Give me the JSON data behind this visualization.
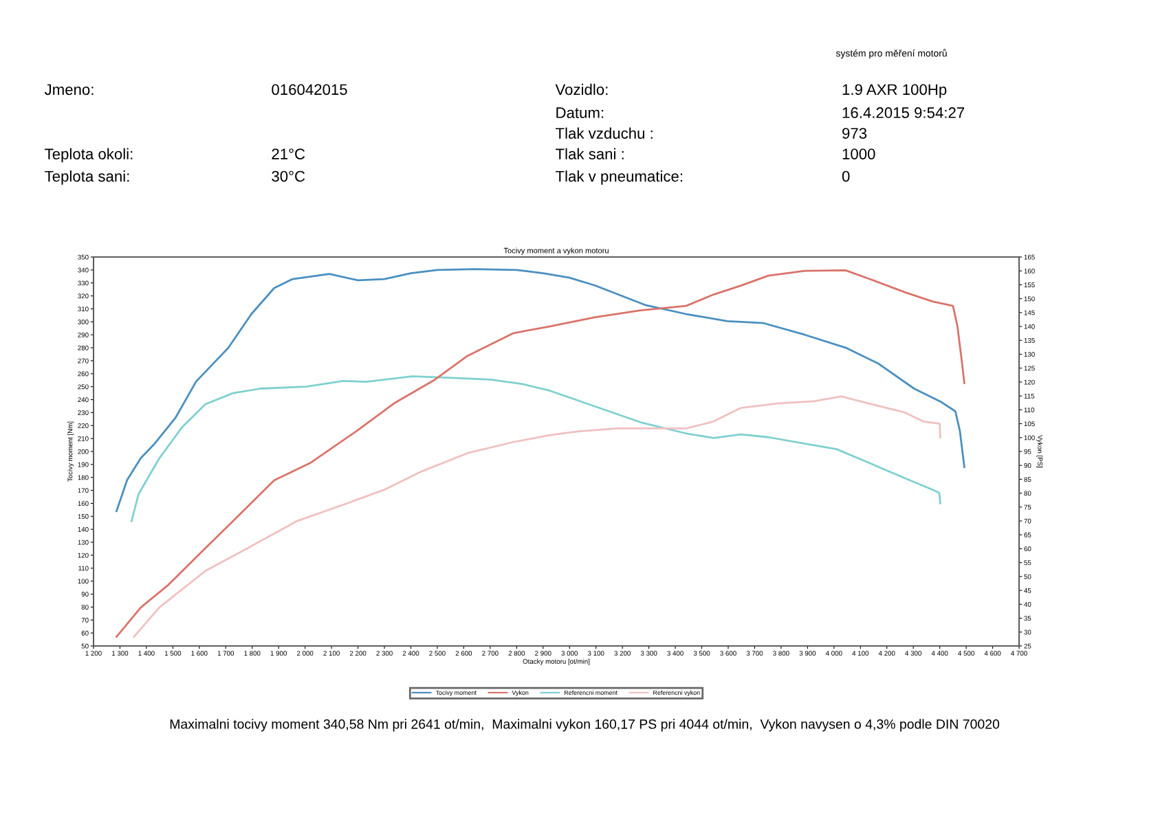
{
  "chart_data": {
    "type": "line",
    "title": "Tocivy moment a vykon motoru",
    "xlabel": "Otacky motoru [ot/min]",
    "ylabel": "Tocivy moment [Nm]",
    "y2label": "Vykon [PS]",
    "annotations": [
      "systém pro měření motorů",
      "Jmeno:",
      "016042015",
      "Teplota okoli:",
      "21°C",
      "Teplota sani:",
      "30°C",
      "Vozidlo:",
      "1.9 AXR 100Hp",
      "Datum:",
      "16.4.2015 9:54:27",
      "Tlak vzduchu :",
      "973",
      "Tlak sani :",
      "1000",
      "Tlak v pneumatice:",
      "0",
      "Maximalni tocivy moment 340,58 Nm pri 2641 ot/min,  Maximalni vykon 160,17 PS pri 4044 ot/min,  Vykon navysen o 4,3% podle DIN 70020"
    ],
    "series": [
      {
        "name": "Tocivy moment",
        "color": "#4a8fc0",
        "x": [
          1287,
          1327,
          1379,
          1431,
          1510,
          1588,
          1710,
          1797,
          1883,
          1953,
          2092,
          2200,
          2300,
          2400,
          2500,
          2641,
          2800,
          2900,
          3000,
          3097,
          3286,
          3441,
          3597,
          3734,
          3890,
          4045,
          4166,
          4303,
          4407,
          4459,
          4476,
          4493
        ],
        "values": [
          154,
          178,
          195,
          206,
          226,
          254,
          280,
          306,
          326,
          333,
          337,
          332,
          333,
          337.5,
          340,
          340.6,
          340,
          337.5,
          334,
          328,
          313,
          306,
          300.5,
          299,
          290,
          280,
          268,
          248.5,
          238,
          231,
          216,
          188
        ]
      },
      {
        "name": "Vykon",
        "color": "#d9736a",
        "axis": "y2",
        "x": [
          1287,
          1379,
          1483,
          1605,
          1744,
          1883,
          2022,
          2197,
          2336,
          2490,
          2614,
          2788,
          2924,
          3097,
          3269,
          3441,
          3545,
          3648,
          3752,
          3890,
          4044,
          4131,
          4269,
          4372,
          4450,
          4467,
          4484,
          4493
        ],
        "values": [
          28.3,
          38.9,
          47,
          58.5,
          71.5,
          84.6,
          91,
          102.5,
          112.3,
          120.8,
          129.4,
          137.6,
          140,
          143.3,
          145.8,
          147.4,
          151.5,
          154.7,
          158.3,
          160,
          160.2,
          157.2,
          152.3,
          149,
          147.4,
          140,
          127,
          119.6
        ]
      },
      {
        "name": "Referencni moment",
        "color": "#7fd0d0",
        "x": [
          1344,
          1370,
          1449,
          1536,
          1623,
          1727,
          1831,
          2005,
          2144,
          2231,
          2405,
          2527,
          2701,
          2823,
          2927,
          3097,
          3269,
          3441,
          3545,
          3648,
          3752,
          3890,
          4010,
          4131,
          4269,
          4372,
          4398,
          4402
        ],
        "values": [
          146.3,
          167,
          194.8,
          219,
          236.4,
          245,
          248.5,
          250,
          254.4,
          253.7,
          258,
          257,
          255.4,
          252,
          246.8,
          234.7,
          222.5,
          213.9,
          210.4,
          213.2,
          211,
          206,
          201.8,
          191.4,
          179.3,
          170.6,
          168.1,
          160
        ]
      },
      {
        "name": "Referencni vykon",
        "color": "#f0c0c0",
        "axis": "y2",
        "x": [
          1353,
          1449,
          1623,
          1779,
          1970,
          2161,
          2301,
          2440,
          2614,
          2788,
          2927,
          3031,
          3183,
          3441,
          3545,
          3648,
          3786,
          3924,
          4028,
          4131,
          4269,
          4338,
          4400,
          4402
        ],
        "values": [
          28.3,
          38.9,
          52,
          60,
          70,
          76.4,
          81.3,
          87.8,
          94.4,
          98.4,
          100.9,
          102.2,
          103.3,
          103.3,
          105.8,
          110.7,
          112.3,
          113.1,
          114.8,
          112.3,
          109,
          105.8,
          105,
          100.1
        ]
      }
    ],
    "xlim": [
      1200,
      4700
    ],
    "xticks": [
      {
        "value": 1200,
        "label": "1 200"
      },
      {
        "value": 1300,
        "label": "1 300"
      },
      {
        "value": 1400,
        "label": "1 400"
      },
      {
        "value": 1500,
        "label": "1 500"
      },
      {
        "value": 1600,
        "label": "1 600"
      },
      {
        "value": 1700,
        "label": "1 700"
      },
      {
        "value": 1800,
        "label": "1 800"
      },
      {
        "value": 1900,
        "label": "1 900"
      },
      {
        "value": 2000,
        "label": "2 000"
      },
      {
        "value": 2100,
        "label": "2 100"
      },
      {
        "value": 2200,
        "label": "2 200"
      },
      {
        "value": 2300,
        "label": "2 300"
      },
      {
        "value": 2400,
        "label": "2 400"
      },
      {
        "value": 2500,
        "label": "2 500"
      },
      {
        "value": 2600,
        "label": "2 600"
      },
      {
        "value": 2700,
        "label": "2 700"
      },
      {
        "value": 2800,
        "label": "2 800"
      },
      {
        "value": 2900,
        "label": "2 900"
      },
      {
        "value": 3000,
        "label": "3 000"
      },
      {
        "value": 3100,
        "label": "3 100"
      },
      {
        "value": 3200,
        "label": "3 200"
      },
      {
        "value": 3300,
        "label": "3 300"
      },
      {
        "value": 3400,
        "label": "3 400"
      },
      {
        "value": 3500,
        "label": "3 500"
      },
      {
        "value": 3600,
        "label": "3 600"
      },
      {
        "value": 3700,
        "label": "3 700"
      },
      {
        "value": 3800,
        "label": "3 800"
      },
      {
        "value": 3900,
        "label": "3 900"
      },
      {
        "value": 4000,
        "label": "4 000"
      },
      {
        "value": 4100,
        "label": "4 100"
      },
      {
        "value": 4200,
        "label": "4 200"
      },
      {
        "value": 4300,
        "label": "4 300"
      },
      {
        "value": 4400,
        "label": "4 400"
      },
      {
        "value": 4500,
        "label": "4 500"
      },
      {
        "value": 4600,
        "label": "4 600"
      },
      {
        "value": 4700,
        "label": "4 700"
      }
    ],
    "ylim": [
      50,
      350
    ],
    "yticks": [
      50,
      60,
      70,
      80,
      90,
      100,
      110,
      120,
      130,
      140,
      150,
      160,
      170,
      180,
      190,
      200,
      210,
      220,
      230,
      240,
      250,
      260,
      270,
      280,
      290,
      300,
      310,
      320,
      330,
      340,
      350
    ],
    "y2lim": [
      25,
      165
    ],
    "y2ticks": [
      25,
      30,
      35,
      40,
      45,
      50,
      55,
      60,
      65,
      70,
      75,
      80,
      85,
      90,
      95,
      100,
      105,
      110,
      115,
      120,
      125,
      130,
      135,
      140,
      145,
      150,
      155,
      160,
      165
    ],
    "legend": "bottom",
    "grid": false,
    "line_style": "solid"
  }
}
